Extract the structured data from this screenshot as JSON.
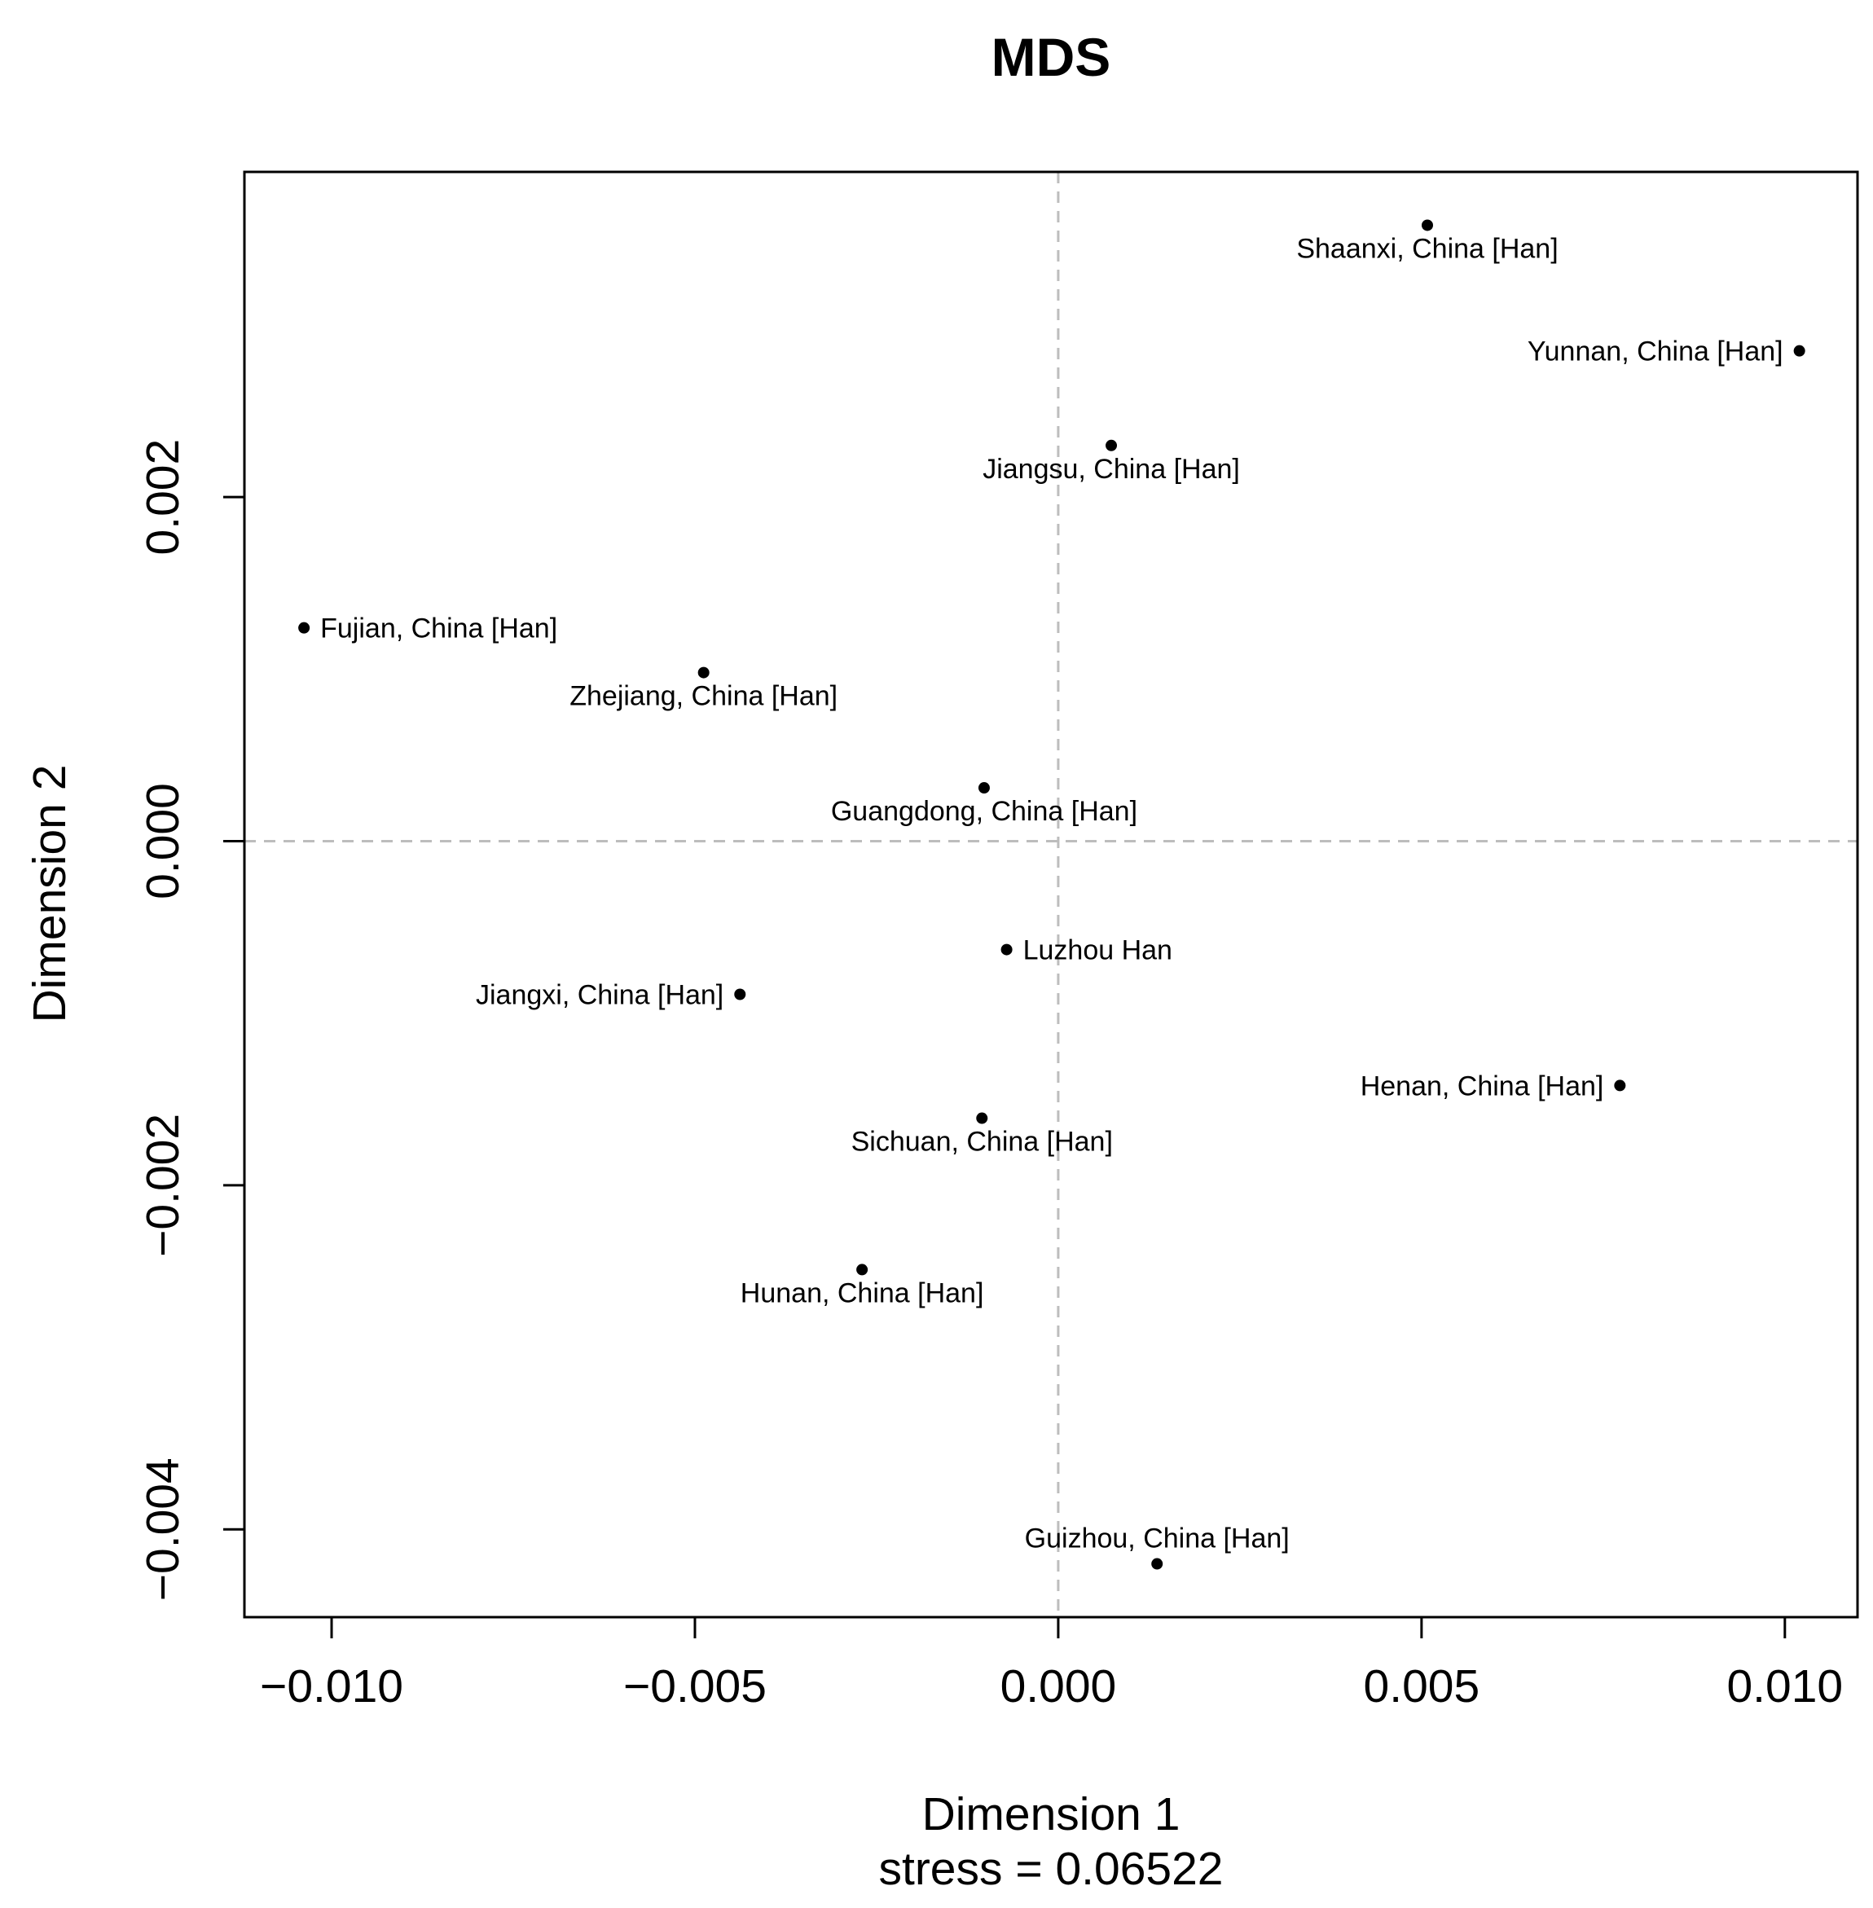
{
  "chart_data": {
    "type": "scatter",
    "title": "MDS",
    "xlabel": "Dimension 1",
    "ylabel": "Dimension 2",
    "subtitle": "stress = 0.06522",
    "xlim": [
      -0.0112,
      0.011
    ],
    "ylim": [
      -0.00451,
      0.00389
    ],
    "xticks": [
      -0.01,
      -0.005,
      0.0,
      0.005,
      0.01
    ],
    "xtick_labels": [
      "−0.010",
      "−0.005",
      "0.000",
      "0.005",
      "0.010"
    ],
    "yticks": [
      -0.004,
      -0.002,
      0.0,
      0.002
    ],
    "ytick_labels": [
      "−0.004",
      "−0.002",
      "0.000",
      "0.002"
    ],
    "reference_lines": {
      "x": 0,
      "y": 0,
      "style": "dashed",
      "color": "#bdbdbd"
    },
    "grid": false,
    "points": [
      {
        "label": "Shaanxi, China [Han]",
        "x": 0.00508,
        "y": 0.00358,
        "label_pos": "below"
      },
      {
        "label": "Yunnan, China [Han]",
        "x": 0.0102,
        "y": 0.00285,
        "label_pos": "left"
      },
      {
        "label": "Jiangsu, China [Han]",
        "x": 0.00073,
        "y": 0.0023,
        "label_pos": "below"
      },
      {
        "label": "Fujian, China [Han]",
        "x": -0.01038,
        "y": 0.00124,
        "label_pos": "right"
      },
      {
        "label": "Zhejiang, China [Han]",
        "x": -0.00488,
        "y": 0.00098,
        "label_pos": "below"
      },
      {
        "label": "Guangdong, China [Han]",
        "x": -0.00102,
        "y": 0.00031,
        "label_pos": "below"
      },
      {
        "label": "Luzhou Han",
        "x": -0.00071,
        "y": -0.00063,
        "label_pos": "right"
      },
      {
        "label": "Jiangxi, China [Han]",
        "x": -0.00438,
        "y": -0.00089,
        "label_pos": "left"
      },
      {
        "label": "Henan, China [Han]",
        "x": 0.00773,
        "y": -0.00142,
        "label_pos": "left"
      },
      {
        "label": "Sichuan, China [Han]",
        "x": -0.00105,
        "y": -0.00161,
        "label_pos": "below"
      },
      {
        "label": "Hunan, China [Han]",
        "x": -0.0027,
        "y": -0.00249,
        "label_pos": "below"
      },
      {
        "label": "Guizhou, China [Han]",
        "x": 0.00136,
        "y": -0.0042,
        "label_pos": "above"
      }
    ]
  }
}
